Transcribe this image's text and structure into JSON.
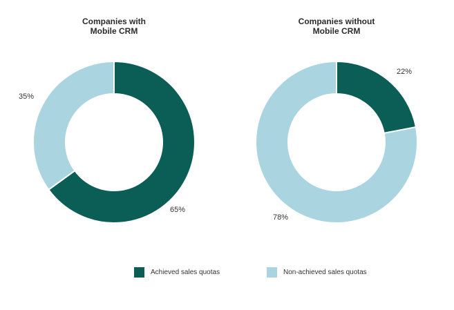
{
  "chart_data": [
    {
      "type": "pie",
      "title": "Companies with\nMobile CRM",
      "title_lines": [
        "Companies with",
        "Mobile CRM"
      ],
      "slices": [
        {
          "category": "Achieved sales quotas",
          "value": 65,
          "label": "65%"
        },
        {
          "category": "Non-achieved sales quotas",
          "value": 35,
          "label": "35%"
        }
      ]
    },
    {
      "type": "pie",
      "title": "Companies without\nMobile CRM",
      "title_lines": [
        "Companies without",
        "Mobile CRM"
      ],
      "slices": [
        {
          "category": "Achieved sales quotas",
          "value": 22,
          "label": "22%"
        },
        {
          "category": "Non-achieved sales quotas",
          "value": 78,
          "label": "78%"
        }
      ]
    }
  ],
  "legend": {
    "placement": "bottom",
    "items": [
      {
        "label": "Achieved sales quotas",
        "color": "#0b5e55"
      },
      {
        "label": "Non-achieved sales quotas",
        "color": "#aad5e0"
      }
    ]
  },
  "colors": {
    "Achieved sales quotas": "#0b5e55",
    "Non-achieved sales quotas": "#aad5e0"
  }
}
